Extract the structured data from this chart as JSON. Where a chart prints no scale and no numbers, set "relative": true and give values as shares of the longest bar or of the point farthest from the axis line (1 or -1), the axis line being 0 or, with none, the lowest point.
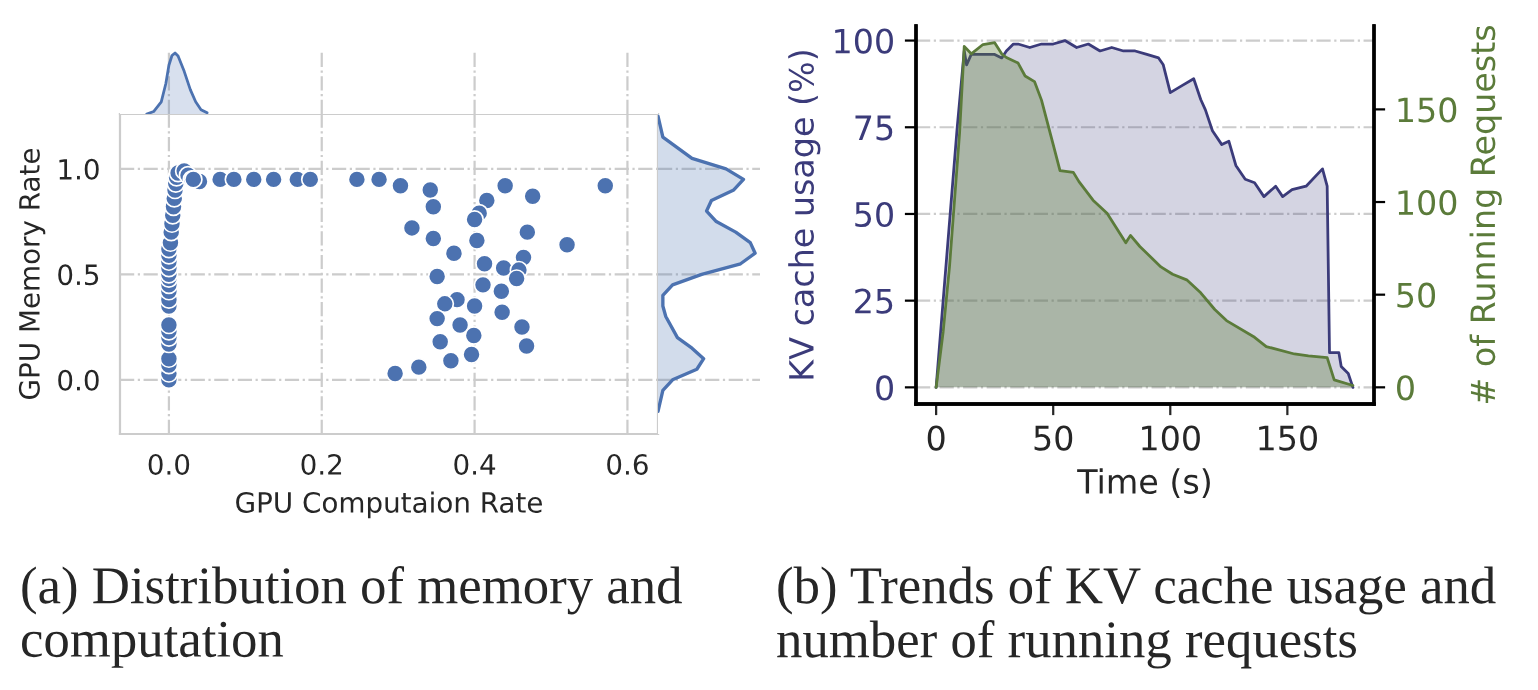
{
  "chart_data": [
    {
      "type": "scatter",
      "title": "(a) Distribution of memory and computation",
      "xlabel": "GPU Computaion Rate",
      "ylabel": "GPU Memory Rate",
      "color": "#4c72b0",
      "x": [
        0,
        0,
        0,
        0,
        0,
        0,
        0,
        0,
        0,
        0,
        0,
        0,
        0,
        0,
        0,
        0,
        0,
        0,
        0.002,
        0.003,
        0.004,
        0.005,
        0.006,
        0.007,
        0.008,
        0.009,
        0.01,
        0.012,
        0.02,
        0.025,
        0.03,
        0.04,
        0.032,
        0.067,
        0.085,
        0.111,
        0.137,
        0.168,
        0.185,
        0.246,
        0.275,
        0.303,
        0.342,
        0.44,
        0.476,
        0.416,
        0.346,
        0.406,
        0.4,
        0.318,
        0.469,
        0.346,
        0.403,
        0.521,
        0.373,
        0.464,
        0.413,
        0.438,
        0.458,
        0.351,
        0.455,
        0.411,
        0.435,
        0.377,
        0.361,
        0.4,
        0.436,
        0.351,
        0.381,
        0.462,
        0.399,
        0.355,
        0.468,
        0.396,
        0.369,
        0.327,
        0.296,
        0.571
      ],
      "values": [
        0,
        0.03,
        0.07,
        0.1,
        0.17,
        0.2,
        0.23,
        0.26,
        0.35,
        0.38,
        0.42,
        0.45,
        0.48,
        0.5,
        0.53,
        0.56,
        0.59,
        0.62,
        0.65,
        0.7,
        0.74,
        0.78,
        0.82,
        0.86,
        0.9,
        0.93,
        0.96,
        0.98,
        0.99,
        0.97,
        0.95,
        0.94,
        0.95,
        0.95,
        0.95,
        0.95,
        0.95,
        0.95,
        0.95,
        0.95,
        0.95,
        0.92,
        0.9,
        0.92,
        0.87,
        0.85,
        0.82,
        0.79,
        0.76,
        0.72,
        0.7,
        0.67,
        0.66,
        0.64,
        0.6,
        0.58,
        0.55,
        0.53,
        0.52,
        0.49,
        0.48,
        0.45,
        0.42,
        0.38,
        0.36,
        0.35,
        0.32,
        0.29,
        0.26,
        0.25,
        0.21,
        0.18,
        0.16,
        0.12,
        0.09,
        0.06,
        0.03,
        0.92
      ],
      "xlim": [
        -0.064,
        0.64
      ],
      "ylim": [
        -0.257,
        1.26
      ],
      "xticks": [
        {
          "value": 0,
          "label": "0.0"
        },
        {
          "value": 0.2,
          "label": "0.2"
        },
        {
          "value": 0.4,
          "label": "0.4"
        },
        {
          "value": 0.6,
          "label": "0.6"
        }
      ],
      "yticks": [
        {
          "value": 0,
          "label": "0.0"
        },
        {
          "value": 0.5,
          "label": "0.5"
        },
        {
          "value": 1.0,
          "label": "1.0"
        }
      ],
      "grid": true
    },
    {
      "type": "area",
      "relative": true,
      "color": "#4c72b0",
      "tick_labels": false,
      "grid": "x",
      "x": [
        -0.029,
        -0.02,
        -0.01,
        -0.004,
        0,
        0.004,
        0.008,
        0.012,
        0.02,
        0.028,
        0.035,
        0.042,
        0.05
      ],
      "values": [
        0,
        0.04,
        0.2,
        0.5,
        0.8,
        0.96,
        1,
        0.95,
        0.7,
        0.4,
        0.2,
        0.07,
        0.02
      ],
      "xlim": [
        -0.064,
        0.64
      ],
      "xticks": [
        0,
        0.2,
        0.4,
        0.6
      ]
    },
    {
      "type": "area",
      "relative": true,
      "orientation": "horizontal",
      "color": "#4c72b0",
      "tick_labels": false,
      "grid": "y",
      "x": [
        1.25,
        1.15,
        1.05,
        1.0,
        0.95,
        0.9,
        0.85,
        0.8,
        0.75,
        0.7,
        0.65,
        0.6,
        0.55,
        0.5,
        0.45,
        0.4,
        0.35,
        0.3,
        0.2,
        0.15,
        0.1,
        0.05,
        0.0,
        -0.05,
        -0.15
      ],
      "values": [
        0,
        0.05,
        0.35,
        0.7,
        0.88,
        0.78,
        0.55,
        0.5,
        0.6,
        0.8,
        0.95,
        1.0,
        0.85,
        0.45,
        0.15,
        0.05,
        0.05,
        0.08,
        0.2,
        0.35,
        0.47,
        0.4,
        0.15,
        0.05,
        0
      ],
      "ylim": [
        -0.257,
        1.26
      ],
      "yticks": [
        0,
        0.5,
        1.0
      ]
    },
    {
      "type": "area",
      "title": "(b) Trends of KV cache usage and number of running requests",
      "xlabel": "Time (s)",
      "ylabel": "KV cache usage (%)",
      "y2label": "# of Running Requests",
      "xlim": [
        -8.6,
        187
      ],
      "ylim": [
        -4.8,
        104.2
      ],
      "y2lim": [
        -9,
        195
      ],
      "xticks": [
        0,
        50,
        100,
        150
      ],
      "yticks": [
        0,
        25,
        50,
        75,
        100
      ],
      "y2ticks": [
        0,
        50,
        100,
        150
      ],
      "grid": "y",
      "series": [
        {
          "color": "#3b3b7a",
          "x": [
            0,
            3,
            6,
            9,
            12,
            13,
            15,
            20,
            25,
            28,
            30,
            33,
            35,
            40,
            45,
            50,
            55,
            60,
            65,
            70,
            75,
            80,
            85,
            90,
            95,
            97,
            100,
            105,
            110,
            113,
            115,
            118,
            122,
            125,
            128,
            132,
            136,
            140,
            145,
            148,
            152,
            158,
            165,
            167,
            168,
            172,
            173,
            176,
            178
          ],
          "values": [
            0,
            25,
            50,
            75,
            97,
            93,
            96,
            96,
            96,
            95,
            97,
            99,
            99,
            98,
            99,
            99,
            100,
            98,
            99,
            97,
            98,
            97,
            97,
            96,
            95,
            93,
            85,
            87,
            89,
            83,
            80,
            74,
            70,
            71,
            64,
            60,
            59,
            55,
            58,
            55,
            57,
            58,
            63,
            58,
            10,
            10,
            6,
            4,
            0
          ]
        },
        {
          "color": "#5b7b3a",
          "axis": "y2",
          "x": [
            0,
            3,
            5.7,
            10,
            12,
            15,
            20,
            25,
            28,
            30,
            35,
            38,
            42,
            45,
            50,
            52.9,
            58.6,
            61,
            67,
            73,
            81,
            83,
            87,
            96,
            101,
            107,
            113,
            119,
            124,
            136,
            141,
            153,
            159,
            167,
            170,
            178
          ],
          "values": [
            0,
            30,
            65,
            137,
            184,
            180,
            185,
            186,
            180,
            178,
            175,
            168,
            165,
            155,
            131,
            117,
            116,
            111,
            101,
            94,
            78,
            82,
            76,
            65,
            61,
            58,
            51,
            42,
            36,
            27,
            22,
            18,
            17,
            16,
            4,
            1
          ]
        }
      ]
    }
  ]
}
